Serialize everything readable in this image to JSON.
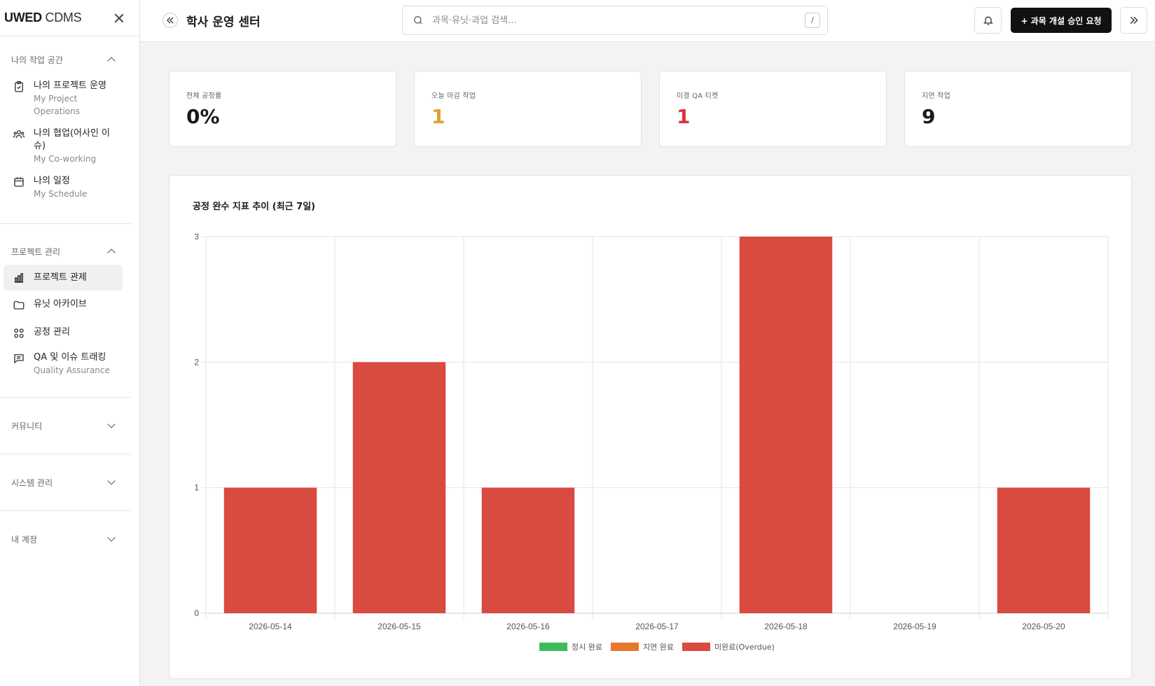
{
  "sidebar": {
    "brand_bold": "UWED",
    "brand_light": " CDMS",
    "sections": [
      {
        "title": "나의 작업 공간",
        "expanded": true,
        "items": [
          {
            "label": "나의 프로젝트 운영",
            "sublabel": "My Project Operations",
            "icon": "clipboard-check-icon"
          },
          {
            "label": "나의 협업(어사인 이슈)",
            "sublabel": "My Co-working",
            "icon": "users-icon"
          },
          {
            "label": "나의 일정",
            "sublabel": "My Schedule",
            "icon": "calendar-icon"
          }
        ]
      },
      {
        "title": "프로젝트 관리",
        "expanded": true,
        "items": [
          {
            "label": "프로젝트 관제",
            "sublabel": "",
            "icon": "bar-chart-icon",
            "active": true
          },
          {
            "label": "유닛 아카이브",
            "sublabel": "",
            "icon": "folder-icon"
          },
          {
            "label": "공정 관리",
            "sublabel": "",
            "icon": "grid-icon"
          },
          {
            "label": "QA 및 이슈 트래킹",
            "sublabel": "Quality Assurance",
            "icon": "message-square-icon"
          }
        ]
      },
      {
        "title": "커뮤니티",
        "expanded": false
      },
      {
        "title": "시스템 관리",
        "expanded": false
      },
      {
        "title": "내 계정",
        "expanded": false
      }
    ]
  },
  "header": {
    "title": "학사 운영 센터",
    "search_placeholder": "과목·유닛·과업 검색...",
    "search_shortcut": "/",
    "primary_button": "+ 과목 개설 승인 요청"
  },
  "stats": [
    {
      "label": "전체 공정률",
      "value": "0%",
      "color": "#1a1a1a"
    },
    {
      "label": "오늘 마감 작업",
      "value": "1",
      "color": "#e0a030"
    },
    {
      "label": "미결 QA 티켓",
      "value": "1",
      "color": "#d9363e"
    },
    {
      "label": "지연 작업",
      "value": "9",
      "color": "#1a1a1a"
    }
  ],
  "chart_data": {
    "type": "bar",
    "stacked": true,
    "title": "공정 완수 지표 추이 (최근 7일)",
    "categories": [
      "2026-05-14",
      "2026-05-15",
      "2026-05-16",
      "2026-05-17",
      "2026-05-18",
      "2026-05-19",
      "2026-05-20"
    ],
    "series": [
      {
        "name": "정시 완료",
        "color": "#3dbb5a",
        "values": [
          0,
          0,
          0,
          0,
          0,
          0,
          0
        ]
      },
      {
        "name": "지연 완료",
        "color": "#e8772e",
        "values": [
          0,
          0,
          0,
          0,
          0,
          0,
          0
        ]
      },
      {
        "name": "미완료(Overdue)",
        "color": "#d94a40",
        "values": [
          1,
          2,
          1,
          0,
          3,
          0,
          1
        ]
      }
    ],
    "ylim": [
      0,
      3
    ],
    "yticks": [
      "0",
      "1",
      "2",
      "3"
    ],
    "grid": true,
    "legend": "bottom"
  }
}
